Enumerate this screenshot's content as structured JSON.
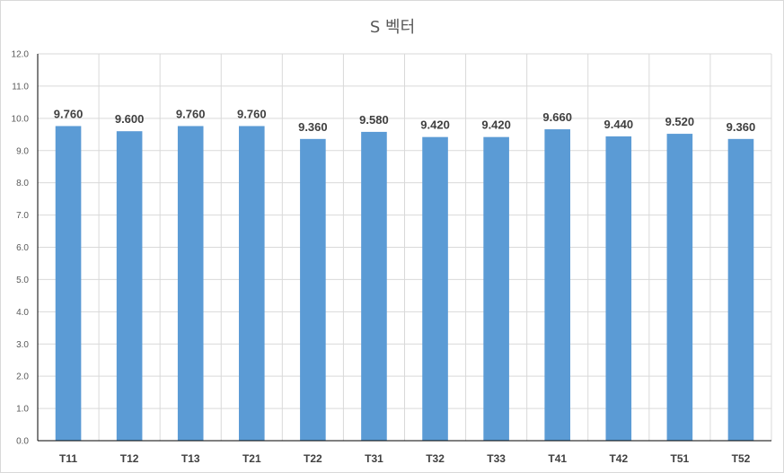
{
  "chart_data": {
    "type": "bar",
    "title": "S 벡터",
    "categories": [
      "T11",
      "T12",
      "T13",
      "T21",
      "T22",
      "T31",
      "T32",
      "T33",
      "T41",
      "T42",
      "T51",
      "T52"
    ],
    "values": [
      9.76,
      9.6,
      9.76,
      9.76,
      9.36,
      9.58,
      9.42,
      9.42,
      9.66,
      9.44,
      9.52,
      9.36
    ],
    "data_labels": [
      "9.760",
      "9.600",
      "9.760",
      "9.760",
      "9.360",
      "9.580",
      "9.420",
      "9.420",
      "9.660",
      "9.440",
      "9.520",
      "9.360"
    ],
    "y_ticks": [
      "0.0",
      "1.0",
      "2.0",
      "3.0",
      "4.0",
      "5.0",
      "6.0",
      "7.0",
      "8.0",
      "9.0",
      "10.0",
      "11.0",
      "12.0"
    ],
    "ylim": [
      0,
      12
    ],
    "xlabel": "",
    "ylabel": "",
    "grid": "both",
    "legend": "none",
    "bar_color": "#5b9bd5",
    "grid_color": "#d9d9d9",
    "axis_color": "#000000"
  }
}
